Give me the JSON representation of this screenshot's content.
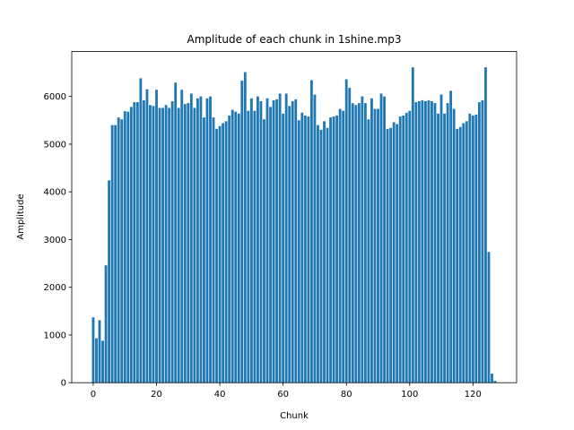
{
  "chart_data": {
    "type": "bar",
    "title": "Amplitude of each chunk in 1shine.mp3",
    "xlabel": "Chunk",
    "ylabel": "Amplitude",
    "color": "#1f77b4",
    "x": [
      0,
      1,
      2,
      3,
      4,
      5,
      6,
      7,
      8,
      9,
      10,
      11,
      12,
      13,
      14,
      15,
      16,
      17,
      18,
      19,
      20,
      21,
      22,
      23,
      24,
      25,
      26,
      27,
      28,
      29,
      30,
      31,
      32,
      33,
      34,
      35,
      36,
      37,
      38,
      39,
      40,
      41,
      42,
      43,
      44,
      45,
      46,
      47,
      48,
      49,
      50,
      51,
      52,
      53,
      54,
      55,
      56,
      57,
      58,
      59,
      60,
      61,
      62,
      63,
      64,
      65,
      66,
      67,
      68,
      69,
      70,
      71,
      72,
      73,
      74,
      75,
      76,
      77,
      78,
      79,
      80,
      81,
      82,
      83,
      84,
      85,
      86,
      87,
      88,
      89,
      90,
      91,
      92,
      93,
      94,
      95,
      96,
      97,
      98,
      99,
      100,
      101,
      102,
      103,
      104,
      105,
      106,
      107,
      108,
      109,
      110,
      111,
      112,
      113,
      114,
      115,
      116,
      117,
      118,
      119,
      120,
      121,
      122,
      123,
      124,
      125,
      126,
      127
    ],
    "values": [
      1370,
      930,
      1310,
      880,
      2460,
      4240,
      5400,
      5400,
      5560,
      5520,
      5690,
      5680,
      5780,
      5880,
      5880,
      6380,
      5920,
      6150,
      5820,
      5800,
      6140,
      5760,
      5760,
      5820,
      5760,
      5900,
      6290,
      5760,
      6140,
      5840,
      5860,
      6060,
      5760,
      5960,
      6000,
      5560,
      5960,
      6000,
      5560,
      5320,
      5380,
      5440,
      5480,
      5600,
      5720,
      5680,
      5640,
      6330,
      6510,
      5700,
      5960,
      5700,
      6000,
      5900,
      5520,
      5960,
      5780,
      5920,
      5940,
      6060,
      5640,
      6060,
      5800,
      5900,
      5940,
      5500,
      5660,
      5600,
      5580,
      6340,
      6040,
      5400,
      5300,
      5480,
      5340,
      5560,
      5580,
      5600,
      5740,
      5700,
      6360,
      6180,
      5860,
      5820,
      5860,
      6000,
      5860,
      5520,
      5960,
      5740,
      5740,
      6060,
      6000,
      5320,
      5340,
      5460,
      5420,
      5580,
      5600,
      5660,
      5700,
      6610,
      5880,
      5900,
      5920,
      5900,
      5920,
      5900,
      5860,
      5640,
      6040,
      5640,
      5860,
      6120,
      5740,
      5320,
      5360,
      5440,
      5480,
      5640,
      5600,
      5620,
      5880,
      5920,
      6610,
      2740,
      190,
      40
    ],
    "xlim": [
      -6.79,
      133.79
    ],
    "xticks": [
      0,
      20,
      40,
      60,
      80,
      100,
      120
    ],
    "ylim": [
      0,
      6940
    ],
    "yticks": [
      0,
      1000,
      2000,
      3000,
      4000,
      5000,
      6000
    ]
  }
}
